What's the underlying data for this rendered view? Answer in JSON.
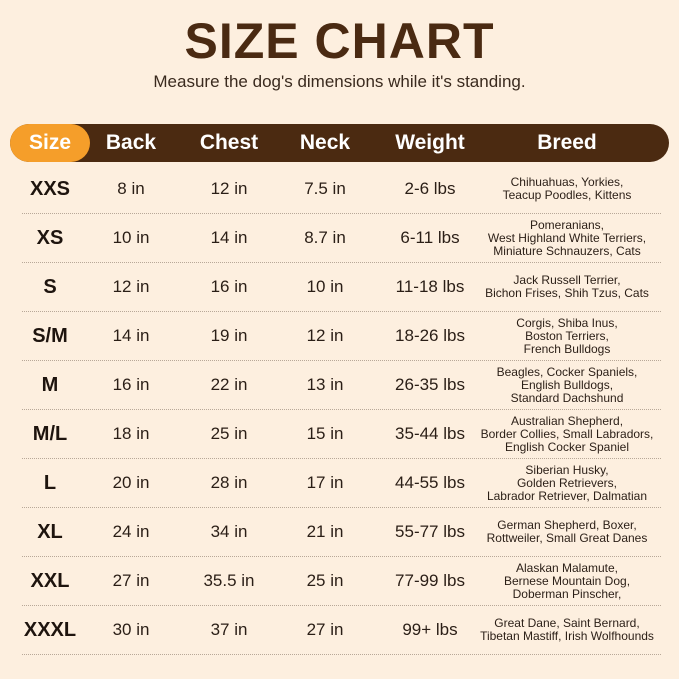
{
  "title": "SIZE CHART",
  "subtitle": "Measure the dog's dimensions while it's standing.",
  "colors": {
    "background": "#fdefdf",
    "header": "#4b2a11",
    "accent": "#f59e2a",
    "title": "#4a2a12"
  },
  "headers": [
    "Size",
    "Back",
    "Chest",
    "Neck",
    "Weight",
    "Breed"
  ],
  "rows": [
    {
      "size": "XXS",
      "back": "8 in",
      "chest": "12 in",
      "neck": "7.5 in",
      "weight": "2-6 lbs",
      "breed": [
        "Chihuahuas, Yorkies,",
        "Teacup Poodles, Kittens"
      ]
    },
    {
      "size": "XS",
      "back": "10 in",
      "chest": "14 in",
      "neck": "8.7 in",
      "weight": "6-11 lbs",
      "breed": [
        "Pomeranians,",
        "West Highland White Terriers,",
        "Miniature Schnauzers, Cats"
      ]
    },
    {
      "size": "S",
      "back": "12 in",
      "chest": "16 in",
      "neck": "10 in",
      "weight": "11-18 lbs",
      "breed": [
        "Jack Russell Terrier,",
        "Bichon Frises, Shih Tzus, Cats"
      ]
    },
    {
      "size": "S/M",
      "back": "14 in",
      "chest": "19 in",
      "neck": "12 in",
      "weight": "18-26 lbs",
      "breed": [
        "Corgis, Shiba Inus,",
        "Boston Terriers,",
        "French Bulldogs"
      ]
    },
    {
      "size": "M",
      "back": "16 in",
      "chest": "22 in",
      "neck": "13 in",
      "weight": "26-35 lbs",
      "breed": [
        "Beagles, Cocker Spaniels,",
        "English Bulldogs,",
        "Standard Dachshund"
      ]
    },
    {
      "size": "M/L",
      "back": "18 in",
      "chest": "25 in",
      "neck": "15 in",
      "weight": "35-44 lbs",
      "breed": [
        "Australian Shepherd,",
        "Border Collies, Small Labradors,",
        "English Cocker Spaniel"
      ]
    },
    {
      "size": "L",
      "back": "20 in",
      "chest": "28 in",
      "neck": "17 in",
      "weight": "44-55 lbs",
      "breed": [
        "Siberian Husky,",
        "Golden Retrievers,",
        "Labrador Retriever, Dalmatian"
      ]
    },
    {
      "size": "XL",
      "back": "24 in",
      "chest": "34 in",
      "neck": "21 in",
      "weight": "55-77 lbs",
      "breed": [
        "German Shepherd, Boxer,",
        "Rottweiler, Small Great Danes"
      ]
    },
    {
      "size": "XXL",
      "back": "27 in",
      "chest": "35.5 in",
      "neck": "25 in",
      "weight": "77-99 lbs",
      "breed": [
        "Alaskan Malamute,",
        "Bernese Mountain Dog,",
        "Doberman Pinscher,"
      ]
    },
    {
      "size": "XXXL",
      "back": "30 in",
      "chest": "37 in",
      "neck": "27 in",
      "weight": "99+ lbs",
      "breed": [
        "Great Dane, Saint Bernard,",
        "Tibetan Mastiff, Irish Wolfhounds"
      ]
    }
  ]
}
